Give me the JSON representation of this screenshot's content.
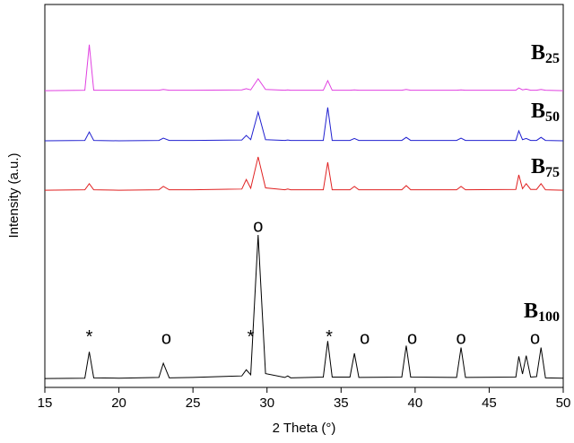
{
  "chart_data": {
    "type": "line",
    "x_label": "2 Theta (°)",
    "y_label": "Intensity (a.u.)",
    "xlim": [
      15,
      50
    ],
    "xticks": [
      15,
      20,
      25,
      30,
      35,
      40,
      45,
      50
    ],
    "ylim": [
      0,
      100
    ],
    "x": [
      15,
      17.7,
      18.0,
      18.3,
      20,
      22.7,
      23.0,
      23.4,
      25,
      28.3,
      28.6,
      28.9,
      29.4,
      29.9,
      31.2,
      31.4,
      31.6,
      33.8,
      34.1,
      34.4,
      35.6,
      35.9,
      36.2,
      39.1,
      39.4,
      39.7,
      42.8,
      43.1,
      43.4,
      46.8,
      47.0,
      47.25,
      47.5,
      47.8,
      48.2,
      48.5,
      48.8,
      50
    ],
    "series": [
      {
        "label": {
          "text": "B",
          "subscript": "25"
        },
        "color": "#e040e0",
        "values": [
          77.5,
          77.6,
          89.5,
          77.6,
          77.6,
          77.6,
          77.8,
          77.6,
          77.6,
          77.7,
          78,
          77.7,
          80.6,
          77.8,
          77.6,
          77.7,
          77.6,
          77.6,
          80.1,
          77.6,
          77.6,
          77.7,
          77.6,
          77.6,
          77.8,
          77.6,
          77.6,
          77.7,
          77.6,
          77.6,
          78.2,
          77.7,
          77.9,
          77.6,
          77.6,
          77.8,
          77.6,
          77.5
        ]
      },
      {
        "label": {
          "text": "B",
          "subscript": "50"
        },
        "color": "#2020d0",
        "values": [
          64.4,
          64.5,
          66.7,
          64.5,
          64.4,
          64.5,
          65.1,
          64.5,
          64.5,
          64.6,
          65.8,
          64.7,
          71.9,
          64.7,
          64.5,
          64.6,
          64.5,
          64.5,
          73.1,
          64.5,
          64.5,
          65,
          64.5,
          64.5,
          65.3,
          64.5,
          64.5,
          65.1,
          64.5,
          64.5,
          67,
          64.7,
          65,
          64.5,
          64.5,
          65.3,
          64.5,
          64.4
        ]
      },
      {
        "label": {
          "text": "B",
          "subscript": "75"
        },
        "color": "#e02020",
        "values": [
          51.5,
          51.6,
          53.2,
          51.6,
          51.5,
          51.6,
          52.5,
          51.6,
          51.6,
          51.8,
          54.3,
          52,
          60.2,
          52.1,
          51.6,
          51.8,
          51.6,
          51.6,
          58.8,
          51.6,
          51.6,
          52.5,
          51.6,
          51.6,
          52.7,
          51.6,
          51.6,
          52.5,
          51.6,
          51.7,
          55.5,
          51.9,
          53.2,
          51.7,
          51.7,
          53.2,
          51.6,
          51.5
        ]
      },
      {
        "label": {
          "text": "B",
          "subscript": "100"
        },
        "color": "#000000",
        "values": [
          2.3,
          2.4,
          9.3,
          2.5,
          2.4,
          2.6,
          6.3,
          2.5,
          2.6,
          3.0,
          4.6,
          3.3,
          39.8,
          3.6,
          2.6,
          3.0,
          2.5,
          2.7,
          12.1,
          2.7,
          2.7,
          8.9,
          2.6,
          2.7,
          10.9,
          2.7,
          2.6,
          10.4,
          2.6,
          2.7,
          8.1,
          3.5,
          8.3,
          2.7,
          2.8,
          10.4,
          2.5,
          2.4
        ]
      }
    ],
    "annotations": [
      {
        "text": "*",
        "x": 18.0,
        "y": 12.9
      },
      {
        "text": "o",
        "x": 23.2,
        "y": 12.6
      },
      {
        "text": "*",
        "x": 28.9,
        "y": 12.9
      },
      {
        "text": "o",
        "x": 29.4,
        "y": 41.9
      },
      {
        "text": "*",
        "x": 34.2,
        "y": 12.9
      },
      {
        "text": "o",
        "x": 36.6,
        "y": 12.6
      },
      {
        "text": "o",
        "x": 39.8,
        "y": 12.6
      },
      {
        "text": "o",
        "x": 43.1,
        "y": 12.6
      },
      {
        "text": "o",
        "x": 48.1,
        "y": 12.6
      }
    ]
  }
}
